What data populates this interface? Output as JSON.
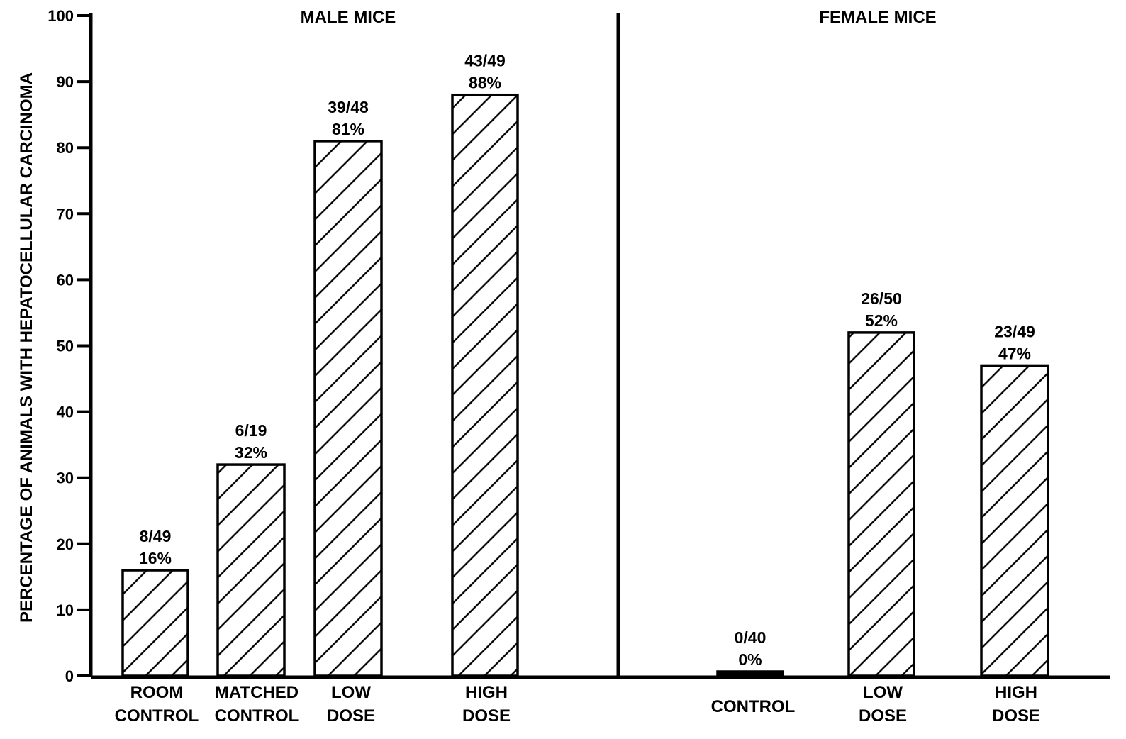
{
  "chart_data": {
    "type": "bar",
    "ylabel": "PERCENTAGE OF ANIMALS WITH HEPATOCELLULAR CARCINOMA",
    "ylim": [
      0,
      100
    ],
    "yticks": [
      "0",
      "10",
      "20",
      "30",
      "40",
      "50",
      "60",
      "70",
      "80",
      "90",
      "100"
    ],
    "panels": [
      {
        "title": "MALE MICE",
        "bars": [
          {
            "label_lines": [
              "ROOM",
              "CONTROL"
            ],
            "value": 16,
            "fraction": "8/49",
            "percent": "16%"
          },
          {
            "label_lines": [
              "MATCHED",
              "CONTROL"
            ],
            "value": 32,
            "fraction": "6/19",
            "percent": "32%"
          },
          {
            "label_lines": [
              "LOW",
              "DOSE"
            ],
            "value": 81,
            "fraction": "39/48",
            "percent": "81%"
          },
          {
            "label_lines": [
              "HIGH",
              "DOSE"
            ],
            "value": 88,
            "fraction": "43/49",
            "percent": "88%"
          }
        ]
      },
      {
        "title": "FEMALE MICE",
        "bars": [
          {
            "label_lines": [
              "CONTROL"
            ],
            "value": 0,
            "fraction": "0/40",
            "percent": "0%"
          },
          {
            "label_lines": [
              "LOW",
              "DOSE"
            ],
            "value": 52,
            "fraction": "26/50",
            "percent": "52%"
          },
          {
            "label_lines": [
              "HIGH",
              "DOSE"
            ],
            "value": 47,
            "fraction": "23/49",
            "percent": "47%"
          }
        ]
      }
    ],
    "grid": false,
    "bar_fill": "diagonal-hatch",
    "colors": {
      "ink": "#000000",
      "background": "#ffffff"
    }
  }
}
